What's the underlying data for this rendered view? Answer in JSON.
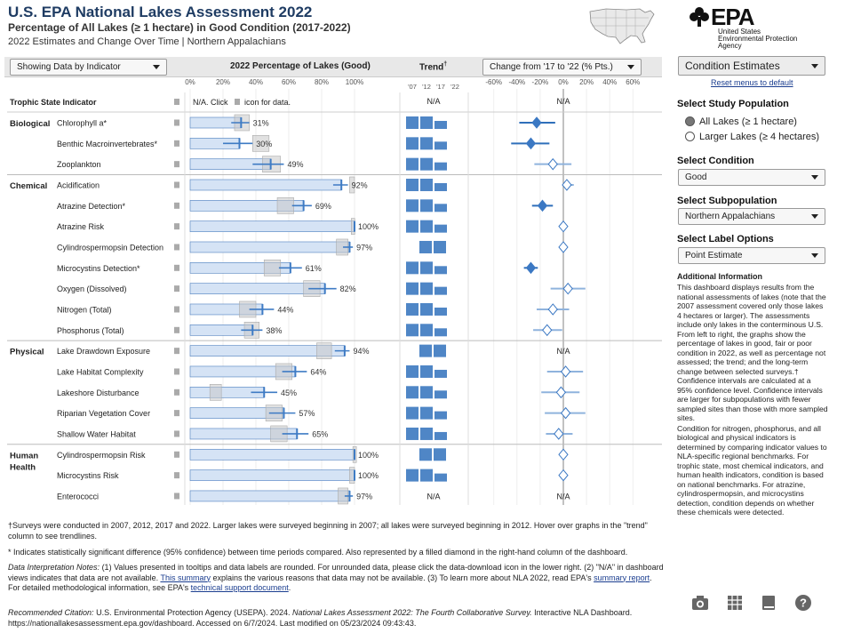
{
  "header": {
    "title": "U.S. EPA National Lakes Assessment 2022",
    "subtitle": "Percentage of All Lakes (≥ 1 hectare) in Good Condition (2017-2022)",
    "subtitle2": "2022 Estimates and Change Over Time | Northern Appalachians",
    "logo_text": "EPA",
    "agency_lines": [
      "United States",
      "Environmental Protection",
      "Agency"
    ]
  },
  "controls": {
    "showing_label": "Showing Data by Indicator",
    "pct_header": "2022 Percentage of Lakes (Good)",
    "trend_header": "Trend",
    "change_label": "Change from '17 to '22 (% Pts.)",
    "condition_estimates_label": "Condition Estimates",
    "reset_label": "Reset menus to default"
  },
  "chart_data": {
    "type": "bar",
    "pct_axis": {
      "ticks": [
        "0%",
        "20%",
        "40%",
        "60%",
        "80%",
        "100%"
      ],
      "range": [
        0,
        100
      ]
    },
    "trend_years": [
      "'07",
      "'12",
      "'17",
      "'22"
    ],
    "change_axis": {
      "ticks": [
        "-60%",
        "-40%",
        "-20%",
        "0%",
        "20%",
        "40%",
        "60%"
      ],
      "range": [
        -60,
        60
      ]
    },
    "column_title": "Trophic State Indicator",
    "na_text": "N/A",
    "click_text_1": "N/A. Click",
    "click_text_2": "icon for data.",
    "groups": [
      {
        "name": "Biological",
        "indicators": [
          {
            "name": "Chlorophyll a*",
            "value": 31,
            "label": "31%",
            "ci": [
              25,
              36
            ],
            "prev": [
              27,
              36
            ],
            "bars": 3,
            "change": -23,
            "change_ci": [
              -38,
              -7
            ],
            "sig": true
          },
          {
            "name": "Benthic Macroinvertebrates*",
            "value": 30,
            "label": "30%",
            "ci": [
              20,
              38
            ],
            "prev": [
              38,
              48
            ],
            "bars": 3,
            "change": -28,
            "change_ci": [
              -45,
              -12
            ],
            "sig": true
          },
          {
            "name": "Zooplankton",
            "value": 49,
            "label": "49%",
            "ci": [
              38,
              57
            ],
            "prev": [
              44,
              55
            ],
            "bars": 3,
            "change": -9,
            "change_ci": [
              -25,
              7
            ],
            "sig": false
          }
        ]
      },
      {
        "name": "Chemical",
        "indicators": [
          {
            "name": "Acidification",
            "value": 92,
            "label": "92%",
            "ci": [
              87,
              96
            ],
            "prev": [
              97,
              100
            ],
            "bars": 3,
            "change": 3,
            "change_ci": [
              0,
              9
            ],
            "sig": false
          },
          {
            "name": "Atrazine Detection*",
            "value": 69,
            "label": "69%",
            "ci": [
              62,
              74
            ],
            "prev": [
              53,
              63
            ],
            "bars": 3,
            "change": -18,
            "change_ci": [
              -27,
              -9
            ],
            "sig": true
          },
          {
            "name": "Atrazine Risk",
            "value": 100,
            "label": "100%",
            "ci": [
              100,
              100
            ],
            "prev": [
              98,
              100
            ],
            "bars": 3,
            "change": 0,
            "change_ci": [
              0,
              0
            ],
            "sig": false
          },
          {
            "name": "Cylindrospermopsin Detection",
            "value": 97,
            "label": "97%",
            "ci": [
              93,
              99
            ],
            "prev": [
              89,
              96
            ],
            "bars": 2,
            "change": 0,
            "change_ci": [
              -3,
              3
            ],
            "sig": false
          },
          {
            "name": "Microcystins Detection*",
            "value": 61,
            "label": "61%",
            "ci": [
              54,
              68
            ],
            "prev": [
              45,
              55
            ],
            "bars": 3,
            "change": -28,
            "change_ci": [
              -34,
              -22
            ],
            "sig": true
          },
          {
            "name": "Oxygen (Dissolved)",
            "value": 82,
            "label": "82%",
            "ci": [
              72,
              89
            ],
            "prev": [
              69,
              79
            ],
            "bars": 3,
            "change": 4,
            "change_ci": [
              -11,
              19
            ],
            "sig": false
          },
          {
            "name": "Nitrogen (Total)",
            "value": 44,
            "label": "44%",
            "ci": [
              36,
              51
            ],
            "prev": [
              30,
              40
            ],
            "bars": 3,
            "change": -9,
            "change_ci": [
              -23,
              5
            ],
            "sig": false
          },
          {
            "name": "Phosphorus (Total)",
            "value": 38,
            "label": "38%",
            "ci": [
              31,
              44
            ],
            "prev": [
              33,
              42
            ],
            "bars": 3,
            "change": -14,
            "change_ci": [
              -26,
              -1
            ],
            "sig": false
          }
        ]
      },
      {
        "name": "Physical",
        "indicators": [
          {
            "name": "Lake Drawdown Exposure",
            "value": 94,
            "label": "94%",
            "ci": [
              88,
              97
            ],
            "prev": [
              77,
              86
            ],
            "bars": 2,
            "change": null,
            "change_ci": null,
            "sig": false
          },
          {
            "name": "Lake Habitat Complexity",
            "value": 64,
            "label": "64%",
            "ci": [
              56,
              71
            ],
            "prev": [
              52,
              62
            ],
            "bars": 3,
            "change": 2,
            "change_ci": [
              -14,
              17
            ],
            "sig": false
          },
          {
            "name": "Lakeshore Disturbance",
            "value": 45,
            "label": "45%",
            "ci": [
              37,
              53
            ],
            "prev": [
              12,
              19
            ],
            "bars": 3,
            "change": -2,
            "change_ci": [
              -19,
              14
            ],
            "sig": false
          },
          {
            "name": "Riparian Vegetation Cover",
            "value": 57,
            "label": "57%",
            "ci": [
              48,
              64
            ],
            "prev": [
              46,
              56
            ],
            "bars": 3,
            "change": 2,
            "change_ci": [
              -16,
              19
            ],
            "sig": false
          },
          {
            "name": "Shallow Water Habitat",
            "value": 65,
            "label": "65%",
            "ci": [
              56,
              72
            ],
            "prev": [
              49,
              59
            ],
            "bars": 3,
            "change": -4,
            "change_ci": [
              -15,
              8
            ],
            "sig": false
          }
        ]
      },
      {
        "name": "Human Health",
        "indicators": [
          {
            "name": "Cylindrospermopsin Risk",
            "value": 100,
            "label": "100%",
            "ci": [
              100,
              100
            ],
            "prev": [
              99,
              100
            ],
            "bars": 2,
            "change": 0,
            "change_ci": [
              0,
              0
            ],
            "sig": false
          },
          {
            "name": "Microcystins Risk",
            "value": 100,
            "label": "100%",
            "ci": [
              100,
              100
            ],
            "prev": [
              97,
              100
            ],
            "bars": 3,
            "change": 0,
            "change_ci": [
              0,
              0
            ],
            "sig": false
          },
          {
            "name": "Enterococci",
            "value": 97,
            "label": "97%",
            "ci": [
              94,
              99
            ],
            "prev": [
              90,
              96
            ],
            "bars": 0,
            "change": null,
            "change_ci": null,
            "sig": false
          }
        ]
      }
    ]
  },
  "footnotes": {
    "f1": "†Surveys were conducted in 2007, 2012, 2017 and 2022. Larger lakes were surveyed beginning in 2007; all lakes were surveyed beginning in 2012. Hover over graphs in the \"trend\" column to see trendlines.",
    "f2": "* Indicates statistically significant difference (95% confidence) between time periods compared. Also represented by a filled diamond in the right-hand column of the dashboard.",
    "f3_label": "Data Interpretation Notes:",
    "f3_a": " (1) Values presented in tooltips and data labels are rounded. For unrounded data, please click the data-download icon in the lower right. (2) \"N/A\" in dashboard views indicates that data are not available. ",
    "f3_link1": "This summary",
    "f3_b": " explains the various reasons that data may not be available. (3) To learn more about NLA 2022, read EPA's ",
    "f3_link2": "summary report",
    "f3_c": ". For detailed methodological information, see EPA's ",
    "f3_link3": "technical support document",
    "f3_d": ".",
    "cite_label": "Recommended Citation:",
    "cite_a": " U.S. Environmental Protection Agency (USEPA). 2024. ",
    "cite_title": "National Lakes Assessment 2022: The Fourth Collaborative Survey.",
    "cite_b": " Interactive NLA Dashboard.",
    "cite_line2": "https://nationallakesassessment.epa.gov/dashboard. Accessed on 6/7/2024. Last modified on 05/23/2024 09:43:43."
  },
  "sidebar": {
    "study_population_title": "Select Study Population",
    "population_options": [
      "All Lakes (≥ 1 hectare)",
      "Larger Lakes (≥ 4 hectares)"
    ],
    "condition_title": "Select Condition",
    "condition_value": "Good",
    "subpopulation_title": "Select Subpopulation",
    "subpopulation_value": "Northern Appalachians",
    "label_options_title": "Select Label Options",
    "label_options_value": "Point Estimate",
    "info_title": "Additional Information",
    "info_p1": "This dashboard displays results from the national assessments of lakes (note that the 2007 assessment covered only those lakes 4 hectares or larger). The assessments include only lakes in the conterminous U.S. From left to right, the graphs show the percentage of lakes in good, fair or poor condition in 2022, as well as percentage not assessed; the trend; and the long-term change between selected surveys.† Confidence intervals are calculated at a 95% confidence level. Confidence intervals are larger for subpopulations with fewer sampled sites than those with more sampled sites.",
    "info_p2": "Condition for nitrogen, phosphorus, and all biological and physical indicators is determined by comparing indicator values to NLA-specific regional benchmarks. For trophic state, most chemical indicators, and human health indicators, condition is based on national benchmarks. For atrazine, cylindrospermopsin, and microcystins detection, condition depends on whether these chemicals were detected."
  },
  "toolbar_icons": [
    "camera-icon",
    "table-icon",
    "book-icon",
    "help-icon"
  ],
  "colors": {
    "title": "#1f3c63",
    "bar_fill": "#d5e3f5",
    "bar_stroke": "#4d7fbf",
    "ci_line": "#3e7bc4",
    "prev_box": "#c9c9c9",
    "trend_bar": "#4f86c6",
    "diamond": "#3b78c3",
    "zero_line": "#999999"
  }
}
